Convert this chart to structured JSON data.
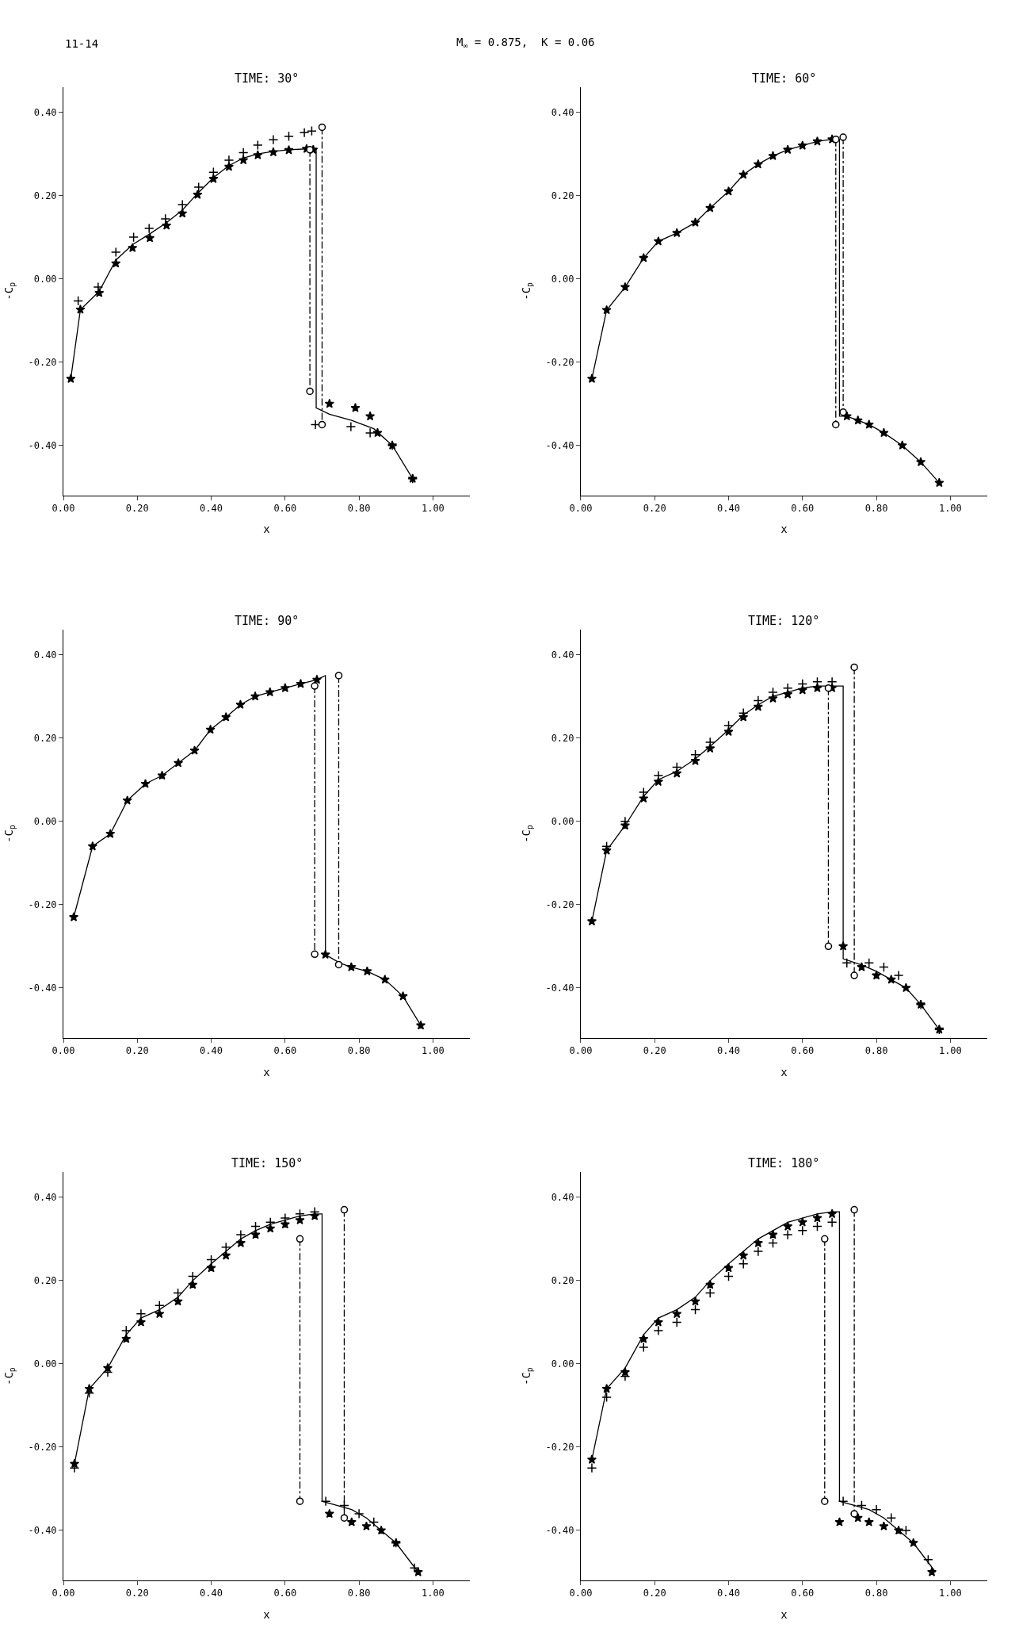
{
  "chart_data": [
    {
      "type": "line",
      "title": "TIME: 30°",
      "xlabel": "x",
      "ylabel": "-C$_{p}$",
      "annotations": [
        "11-14",
        "M$_{∞}$ = 0.875,  K = 0.06"
      ],
      "xlim": [
        0,
        1.1
      ],
      "ylim": [
        -0.52,
        0.46
      ],
      "xticks": [
        {
          "value": 0,
          "label": "0.00"
        },
        {
          "value": 0.2,
          "label": "0.20"
        },
        {
          "value": 0.4,
          "label": "0.40"
        },
        {
          "value": 0.6,
          "label": "0.60"
        },
        {
          "value": 0.8,
          "label": "0.80"
        },
        {
          "value": 1.0,
          "label": "1.00"
        }
      ],
      "yticks": [
        {
          "value": -0.4,
          "label": "-0.40"
        },
        {
          "value": -0.2,
          "label": "-0.20"
        },
        {
          "value": 0,
          "label": "0.00"
        },
        {
          "value": 0.2,
          "label": "0.20"
        },
        {
          "value": 0.4,
          "label": "0.40"
        }
      ],
      "series": [
        {
          "type": "line",
          "color": "#000000",
          "line_style": "solid",
          "marker": "none",
          "x": [
            0.02,
            0.046,
            0.097,
            0.142,
            0.187,
            0.234,
            0.279,
            0.322,
            0.363,
            0.406,
            0.448,
            0.487,
            0.526,
            0.568,
            0.61,
            0.658,
            0.684,
            0.684,
            0.72,
            0.78,
            0.84,
            0.89,
            0.945
          ],
          "values": [
            -0.24,
            -0.074,
            -0.03,
            0.045,
            0.082,
            0.108,
            0.135,
            0.165,
            0.205,
            0.243,
            0.272,
            0.29,
            0.3,
            0.306,
            0.31,
            0.312,
            0.312,
            -0.31,
            -0.325,
            -0.34,
            -0.36,
            -0.4,
            -0.48
          ]
        },
        {
          "type": "scatter",
          "color": "#000000",
          "marker": "star",
          "x": [
            0.02,
            0.046,
            0.097,
            0.142,
            0.187,
            0.234,
            0.279,
            0.322,
            0.363,
            0.406,
            0.448,
            0.487,
            0.526,
            0.568,
            0.61,
            0.658,
            0.676,
            0.72,
            0.79,
            0.83,
            0.85,
            0.89,
            0.945
          ],
          "values": [
            -0.24,
            -0.074,
            -0.034,
            0.037,
            0.074,
            0.098,
            0.128,
            0.157,
            0.202,
            0.24,
            0.269,
            0.285,
            0.297,
            0.304,
            0.309,
            0.312,
            0.31,
            -0.3,
            -0.31,
            -0.33,
            -0.37,
            -0.4,
            -0.48
          ]
        },
        {
          "type": "scatter",
          "color": "#000000",
          "marker": "cross",
          "x": [
            0.04,
            0.094,
            0.142,
            0.19,
            0.232,
            0.276,
            0.322,
            0.366,
            0.406,
            0.448,
            0.487,
            0.526,
            0.568,
            0.61,
            0.652,
            0.672,
            0.682,
            0.778,
            0.83,
            0.89,
            0.945
          ],
          "values": [
            -0.053,
            -0.02,
            0.064,
            0.1,
            0.121,
            0.144,
            0.178,
            0.22,
            0.256,
            0.285,
            0.303,
            0.321,
            0.334,
            0.342,
            0.351,
            0.355,
            -0.35,
            -0.355,
            -0.37,
            -0.4,
            -0.48
          ]
        },
        {
          "type": "line",
          "color": "#000000",
          "line_style": "dashed",
          "marker": "circle",
          "x": [
            0.7,
            0.7
          ],
          "values": [
            0.364,
            -0.35
          ]
        },
        {
          "type": "line",
          "color": "#000000",
          "line_style": "dashed",
          "marker": "circle",
          "x": [
            0.667,
            0.667
          ],
          "values": [
            0.31,
            -0.27
          ]
        }
      ]
    },
    {
      "type": "line",
      "title": "TIME: 60°",
      "xlabel": "x",
      "ylabel": "-C$_{p}$",
      "xlim": [
        0,
        1.1
      ],
      "ylim": [
        -0.52,
        0.46
      ],
      "xticks": [
        {
          "value": 0,
          "label": "0.00"
        },
        {
          "value": 0.2,
          "label": "0.20"
        },
        {
          "value": 0.4,
          "label": "0.40"
        },
        {
          "value": 0.6,
          "label": "0.60"
        },
        {
          "value": 0.8,
          "label": "0.80"
        },
        {
          "value": 1.0,
          "label": "1.00"
        }
      ],
      "yticks": [
        {
          "value": -0.4,
          "label": "-0.40"
        },
        {
          "value": -0.2,
          "label": "-0.20"
        },
        {
          "value": 0,
          "label": "0.00"
        },
        {
          "value": 0.2,
          "label": "0.20"
        },
        {
          "value": 0.4,
          "label": "0.40"
        }
      ],
      "series": [
        {
          "type": "line",
          "color": "#000000",
          "line_style": "solid",
          "marker": "none",
          "x": [
            0.03,
            0.07,
            0.12,
            0.17,
            0.21,
            0.26,
            0.31,
            0.35,
            0.4,
            0.44,
            0.48,
            0.52,
            0.56,
            0.6,
            0.64,
            0.68,
            0.7,
            0.7,
            0.72,
            0.75,
            0.78,
            0.82,
            0.87,
            0.92,
            0.97
          ],
          "values": [
            -0.24,
            -0.075,
            -0.02,
            0.05,
            0.09,
            0.11,
            0.135,
            0.17,
            0.21,
            0.25,
            0.275,
            0.295,
            0.31,
            0.32,
            0.33,
            0.335,
            0.335,
            -0.33,
            -0.33,
            -0.34,
            -0.35,
            -0.37,
            -0.4,
            -0.44,
            -0.49
          ]
        },
        {
          "type": "scatter",
          "color": "#000000",
          "marker": "star",
          "x": [
            0.03,
            0.07,
            0.12,
            0.17,
            0.21,
            0.26,
            0.31,
            0.35,
            0.4,
            0.44,
            0.48,
            0.52,
            0.56,
            0.6,
            0.64,
            0.68,
            0.72,
            0.75,
            0.78,
            0.82,
            0.87,
            0.92,
            0.97
          ],
          "values": [
            -0.24,
            -0.075,
            -0.02,
            0.05,
            0.09,
            0.11,
            0.135,
            0.17,
            0.21,
            0.25,
            0.275,
            0.295,
            0.31,
            0.32,
            0.33,
            0.335,
            -0.33,
            -0.34,
            -0.35,
            -0.37,
            -0.4,
            -0.44,
            -0.49
          ]
        },
        {
          "type": "line",
          "color": "#000000",
          "line_style": "dashed",
          "marker": "circle",
          "x": [
            0.71,
            0.71
          ],
          "values": [
            0.34,
            -0.32
          ]
        },
        {
          "type": "line",
          "color": "#000000",
          "line_style": "dashed",
          "marker": "circle",
          "x": [
            0.69,
            0.69
          ],
          "values": [
            0.335,
            -0.35
          ]
        }
      ]
    },
    {
      "type": "line",
      "title": "TIME: 90°",
      "xlabel": "x",
      "ylabel": "-C$_{p}$",
      "xlim": [
        0,
        1.1
      ],
      "ylim": [
        -0.52,
        0.46
      ],
      "xticks": [
        {
          "value": 0,
          "label": "0.00"
        },
        {
          "value": 0.2,
          "label": "0.20"
        },
        {
          "value": 0.4,
          "label": "0.40"
        },
        {
          "value": 0.6,
          "label": "0.60"
        },
        {
          "value": 0.8,
          "label": "0.80"
        },
        {
          "value": 1.0,
          "label": "1.00"
        }
      ],
      "yticks": [
        {
          "value": -0.4,
          "label": "-0.40"
        },
        {
          "value": -0.2,
          "label": "-0.20"
        },
        {
          "value": 0,
          "label": "0.00"
        },
        {
          "value": 0.2,
          "label": "0.20"
        },
        {
          "value": 0.4,
          "label": "0.40"
        }
      ],
      "series": [
        {
          "type": "line",
          "color": "#000000",
          "line_style": "solid",
          "marker": "none",
          "x": [
            0.028,
            0.079,
            0.127,
            0.173,
            0.222,
            0.267,
            0.311,
            0.355,
            0.398,
            0.44,
            0.479,
            0.519,
            0.559,
            0.6,
            0.642,
            0.686,
            0.709,
            0.709,
            0.748,
            0.779,
            0.822,
            0.87,
            0.919,
            0.967
          ],
          "values": [
            -0.23,
            -0.06,
            -0.03,
            0.05,
            0.09,
            0.11,
            0.14,
            0.17,
            0.22,
            0.25,
            0.28,
            0.3,
            0.31,
            0.32,
            0.33,
            0.34,
            0.35,
            -0.32,
            -0.34,
            -0.35,
            -0.36,
            -0.38,
            -0.42,
            -0.49
          ]
        },
        {
          "type": "scatter",
          "color": "#000000",
          "marker": "star",
          "x": [
            0.028,
            0.079,
            0.127,
            0.173,
            0.222,
            0.267,
            0.311,
            0.355,
            0.398,
            0.44,
            0.479,
            0.519,
            0.559,
            0.6,
            0.642,
            0.686,
            0.709,
            0.779,
            0.822,
            0.87,
            0.919,
            0.967
          ],
          "values": [
            -0.23,
            -0.06,
            -0.03,
            0.05,
            0.09,
            0.11,
            0.14,
            0.17,
            0.22,
            0.25,
            0.28,
            0.3,
            0.31,
            0.32,
            0.33,
            0.34,
            -0.32,
            -0.35,
            -0.36,
            -0.38,
            -0.42,
            -0.49
          ]
        },
        {
          "type": "line",
          "color": "#000000",
          "line_style": "dashed",
          "marker": "circle",
          "x": [
            0.745,
            0.745
          ],
          "values": [
            0.35,
            -0.344
          ]
        },
        {
          "type": "line",
          "color": "#000000",
          "line_style": "dashed",
          "marker": "circle",
          "x": [
            0.68,
            0.68
          ],
          "values": [
            0.325,
            -0.319
          ]
        }
      ]
    },
    {
      "type": "line",
      "title": "TIME: 120°",
      "xlabel": "x",
      "ylabel": "-C$_{p}$",
      "xlim": [
        0,
        1.1
      ],
      "ylim": [
        -0.52,
        0.46
      ],
      "xticks": [
        {
          "value": 0,
          "label": "0.00"
        },
        {
          "value": 0.2,
          "label": "0.20"
        },
        {
          "value": 0.4,
          "label": "0.40"
        },
        {
          "value": 0.6,
          "label": "0.60"
        },
        {
          "value": 0.8,
          "label": "0.80"
        },
        {
          "value": 1.0,
          "label": "1.00"
        }
      ],
      "yticks": [
        {
          "value": -0.4,
          "label": "-0.40"
        },
        {
          "value": -0.2,
          "label": "-0.20"
        },
        {
          "value": 0,
          "label": "0.00"
        },
        {
          "value": 0.2,
          "label": "0.20"
        },
        {
          "value": 0.4,
          "label": "0.40"
        }
      ],
      "series": [
        {
          "type": "line",
          "color": "#000000",
          "line_style": "solid",
          "marker": "none",
          "x": [
            0.03,
            0.07,
            0.12,
            0.17,
            0.21,
            0.26,
            0.31,
            0.35,
            0.4,
            0.44,
            0.48,
            0.52,
            0.56,
            0.6,
            0.64,
            0.68,
            0.71,
            0.71,
            0.76,
            0.8,
            0.84,
            0.88,
            0.92,
            0.97
          ],
          "values": [
            -0.24,
            -0.07,
            -0.01,
            0.06,
            0.1,
            0.12,
            0.15,
            0.18,
            0.22,
            0.255,
            0.28,
            0.3,
            0.31,
            0.32,
            0.325,
            0.325,
            0.325,
            -0.33,
            -0.345,
            -0.36,
            -0.38,
            -0.4,
            -0.44,
            -0.5
          ]
        },
        {
          "type": "scatter",
          "color": "#000000",
          "marker": "star",
          "x": [
            0.03,
            0.07,
            0.12,
            0.17,
            0.21,
            0.26,
            0.31,
            0.35,
            0.4,
            0.44,
            0.48,
            0.52,
            0.56,
            0.6,
            0.64,
            0.68,
            0.71,
            0.76,
            0.8,
            0.84,
            0.88,
            0.92,
            0.97
          ],
          "values": [
            -0.24,
            -0.07,
            -0.01,
            0.055,
            0.095,
            0.115,
            0.145,
            0.175,
            0.215,
            0.25,
            0.275,
            0.295,
            0.305,
            0.315,
            0.32,
            0.32,
            -0.3,
            -0.35,
            -0.37,
            -0.38,
            -0.4,
            -0.44,
            -0.5
          ]
        },
        {
          "type": "scatter",
          "color": "#000000",
          "marker": "cross",
          "x": [
            0.07,
            0.12,
            0.17,
            0.21,
            0.26,
            0.31,
            0.35,
            0.4,
            0.44,
            0.48,
            0.52,
            0.56,
            0.6,
            0.64,
            0.68,
            0.72,
            0.78,
            0.82,
            0.86,
            0.92,
            0.97
          ],
          "values": [
            -0.06,
            0.0,
            0.07,
            0.11,
            0.13,
            0.16,
            0.19,
            0.23,
            0.26,
            0.29,
            0.31,
            0.32,
            0.33,
            0.335,
            0.335,
            -0.34,
            -0.34,
            -0.35,
            -0.37,
            -0.44,
            -0.5
          ]
        },
        {
          "type": "line",
          "color": "#000000",
          "line_style": "dashed",
          "marker": "circle",
          "x": [
            0.74,
            0.74
          ],
          "values": [
            0.37,
            -0.37
          ]
        },
        {
          "type": "line",
          "color": "#000000",
          "line_style": "dashed",
          "marker": "circle",
          "x": [
            0.67,
            0.67
          ],
          "values": [
            0.32,
            -0.3
          ]
        }
      ]
    },
    {
      "type": "line",
      "title": "TIME: 150°",
      "xlabel": "x",
      "ylabel": "-C$_{p}$",
      "xlim": [
        0,
        1.1
      ],
      "ylim": [
        -0.52,
        0.46
      ],
      "xticks": [
        {
          "value": 0,
          "label": "0.00"
        },
        {
          "value": 0.2,
          "label": "0.20"
        },
        {
          "value": 0.4,
          "label": "0.40"
        },
        {
          "value": 0.6,
          "label": "0.60"
        },
        {
          "value": 0.8,
          "label": "0.80"
        },
        {
          "value": 1.0,
          "label": "1.00"
        }
      ],
      "yticks": [
        {
          "value": -0.4,
          "label": "-0.40"
        },
        {
          "value": -0.2,
          "label": "-0.20"
        },
        {
          "value": 0,
          "label": "0.00"
        },
        {
          "value": 0.2,
          "label": "0.20"
        },
        {
          "value": 0.4,
          "label": "0.40"
        }
      ],
      "series": [
        {
          "type": "line",
          "color": "#000000",
          "line_style": "solid",
          "marker": "none",
          "x": [
            0.03,
            0.07,
            0.12,
            0.17,
            0.21,
            0.26,
            0.31,
            0.35,
            0.4,
            0.44,
            0.48,
            0.52,
            0.56,
            0.6,
            0.64,
            0.68,
            0.7,
            0.7,
            0.74,
            0.78,
            0.82,
            0.86,
            0.9,
            0.96
          ],
          "values": [
            -0.24,
            -0.06,
            -0.01,
            0.07,
            0.11,
            0.13,
            0.16,
            0.2,
            0.24,
            0.27,
            0.3,
            0.32,
            0.335,
            0.345,
            0.355,
            0.36,
            0.36,
            -0.33,
            -0.34,
            -0.35,
            -0.37,
            -0.4,
            -0.43,
            -0.5
          ]
        },
        {
          "type": "scatter",
          "color": "#000000",
          "marker": "star",
          "x": [
            0.03,
            0.07,
            0.12,
            0.17,
            0.21,
            0.26,
            0.31,
            0.35,
            0.4,
            0.44,
            0.48,
            0.52,
            0.56,
            0.6,
            0.64,
            0.68,
            0.72,
            0.78,
            0.82,
            0.86,
            0.9,
            0.96
          ],
          "values": [
            -0.24,
            -0.06,
            -0.01,
            0.06,
            0.1,
            0.12,
            0.15,
            0.19,
            0.23,
            0.26,
            0.29,
            0.31,
            0.325,
            0.335,
            0.345,
            0.355,
            -0.36,
            -0.38,
            -0.39,
            -0.4,
            -0.43,
            -0.5
          ]
        },
        {
          "type": "scatter",
          "color": "#000000",
          "marker": "cross",
          "x": [
            0.03,
            0.07,
            0.12,
            0.17,
            0.21,
            0.26,
            0.31,
            0.35,
            0.4,
            0.44,
            0.48,
            0.52,
            0.56,
            0.6,
            0.64,
            0.68,
            0.71,
            0.76,
            0.8,
            0.84,
            0.9,
            0.95
          ],
          "values": [
            -0.25,
            -0.07,
            -0.02,
            0.08,
            0.12,
            0.14,
            0.17,
            0.21,
            0.25,
            0.28,
            0.31,
            0.33,
            0.34,
            0.35,
            0.36,
            0.365,
            -0.33,
            -0.34,
            -0.36,
            -0.38,
            -0.43,
            -0.49
          ]
        },
        {
          "type": "line",
          "color": "#000000",
          "line_style": "dashed",
          "marker": "circle",
          "x": [
            0.76,
            0.76
          ],
          "values": [
            0.37,
            -0.37
          ]
        },
        {
          "type": "line",
          "color": "#000000",
          "line_style": "dashed",
          "marker": "circle",
          "x": [
            0.64,
            0.64
          ],
          "values": [
            0.3,
            -0.33
          ]
        }
      ]
    },
    {
      "type": "line",
      "title": "TIME: 180°",
      "xlabel": "x",
      "ylabel": "-C$_{p}$",
      "xlim": [
        0,
        1.1
      ],
      "ylim": [
        -0.52,
        0.46
      ],
      "xticks": [
        {
          "value": 0,
          "label": "0.00"
        },
        {
          "value": 0.2,
          "label": "0.20"
        },
        {
          "value": 0.4,
          "label": "0.40"
        },
        {
          "value": 0.6,
          "label": "0.60"
        },
        {
          "value": 0.8,
          "label": "0.80"
        },
        {
          "value": 1.0,
          "label": "1.00"
        }
      ],
      "yticks": [
        {
          "value": -0.4,
          "label": "-0.40"
        },
        {
          "value": -0.2,
          "label": "-0.20"
        },
        {
          "value": 0,
          "label": "0.00"
        },
        {
          "value": 0.2,
          "label": "0.20"
        },
        {
          "value": 0.4,
          "label": "0.40"
        }
      ],
      "series": [
        {
          "type": "line",
          "color": "#000000",
          "line_style": "solid",
          "marker": "none",
          "x": [
            0.03,
            0.07,
            0.12,
            0.17,
            0.21,
            0.26,
            0.31,
            0.35,
            0.4,
            0.44,
            0.48,
            0.52,
            0.56,
            0.6,
            0.64,
            0.68,
            0.7,
            0.7,
            0.74,
            0.78,
            0.82,
            0.86,
            0.9,
            0.96
          ],
          "values": [
            -0.23,
            -0.06,
            -0.01,
            0.07,
            0.11,
            0.13,
            0.16,
            0.2,
            0.24,
            0.27,
            0.3,
            0.32,
            0.34,
            0.35,
            0.36,
            0.365,
            0.365,
            -0.33,
            -0.34,
            -0.35,
            -0.37,
            -0.4,
            -0.43,
            -0.5
          ]
        },
        {
          "type": "scatter",
          "color": "#000000",
          "marker": "star",
          "x": [
            0.03,
            0.07,
            0.12,
            0.17,
            0.21,
            0.26,
            0.31,
            0.35,
            0.4,
            0.44,
            0.48,
            0.52,
            0.56,
            0.6,
            0.64,
            0.68,
            0.7,
            0.75,
            0.78,
            0.82,
            0.86,
            0.9,
            0.95
          ],
          "values": [
            -0.23,
            -0.06,
            -0.02,
            0.06,
            0.1,
            0.12,
            0.15,
            0.19,
            0.23,
            0.26,
            0.29,
            0.31,
            0.33,
            0.34,
            0.35,
            0.36,
            -0.38,
            -0.37,
            -0.38,
            -0.39,
            -0.4,
            -0.43,
            -0.5
          ]
        },
        {
          "type": "scatter",
          "color": "#000000",
          "marker": "cross",
          "x": [
            0.03,
            0.07,
            0.12,
            0.17,
            0.21,
            0.26,
            0.31,
            0.35,
            0.4,
            0.44,
            0.48,
            0.52,
            0.56,
            0.6,
            0.64,
            0.68,
            0.71,
            0.76,
            0.8,
            0.84,
            0.88,
            0.94
          ],
          "values": [
            -0.25,
            -0.08,
            -0.03,
            0.04,
            0.08,
            0.1,
            0.13,
            0.17,
            0.21,
            0.24,
            0.27,
            0.29,
            0.31,
            0.32,
            0.33,
            0.34,
            -0.33,
            -0.34,
            -0.35,
            -0.37,
            -0.4,
            -0.47
          ]
        },
        {
          "type": "line",
          "color": "#000000",
          "line_style": "dashed",
          "marker": "circle",
          "x": [
            0.74,
            0.74
          ],
          "values": [
            0.37,
            -0.36
          ]
        },
        {
          "type": "line",
          "color": "#000000",
          "line_style": "dashed",
          "marker": "circle",
          "x": [
            0.66,
            0.66
          ],
          "values": [
            0.3,
            -0.33
          ]
        }
      ]
    }
  ]
}
